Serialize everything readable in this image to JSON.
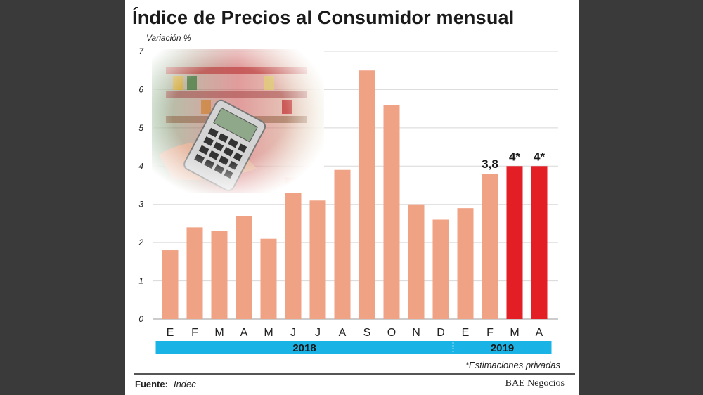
{
  "chart_data": {
    "type": "bar",
    "title": "Índice de Precios al Consumidor mensual",
    "ylabel": "Variación %",
    "ylim": [
      0,
      7
    ],
    "yticks": [
      "0",
      "1",
      "2",
      "3",
      "4",
      "5",
      "6",
      "7"
    ],
    "grid": true,
    "categories": [
      "E",
      "F",
      "M",
      "A",
      "M",
      "J",
      "J",
      "A",
      "S",
      "O",
      "N",
      "D",
      "E",
      "F",
      "M",
      "A"
    ],
    "values": [
      1.8,
      2.4,
      2.3,
      2.7,
      2.1,
      3.7,
      3.1,
      3.9,
      6.5,
      5.6,
      3.0,
      2.6,
      2.9,
      3.8,
      4.0,
      4.0
    ],
    "estimated": [
      false,
      false,
      false,
      false,
      false,
      false,
      false,
      false,
      false,
      false,
      false,
      false,
      false,
      false,
      true,
      true
    ],
    "data_labels": [
      null,
      null,
      null,
      null,
      null,
      null,
      null,
      null,
      null,
      null,
      null,
      null,
      null,
      "3,8",
      "4*",
      "4*"
    ],
    "years": [
      {
        "label": "2018",
        "span": 12
      },
      {
        "label": "2019",
        "span": 4
      }
    ],
    "footnote": "*Estimaciones privadas"
  },
  "colors": {
    "official_bar": "#f0a285",
    "estimated_bar": "#e31e24",
    "year_band": "#1ab3e6",
    "grid": "#d8d8d8"
  },
  "footer": {
    "source_label": "Fuente:",
    "source_value": "Indec",
    "brand": "BAE Negocios"
  },
  "image": {
    "icon": "calculator-supermarket-photo"
  }
}
